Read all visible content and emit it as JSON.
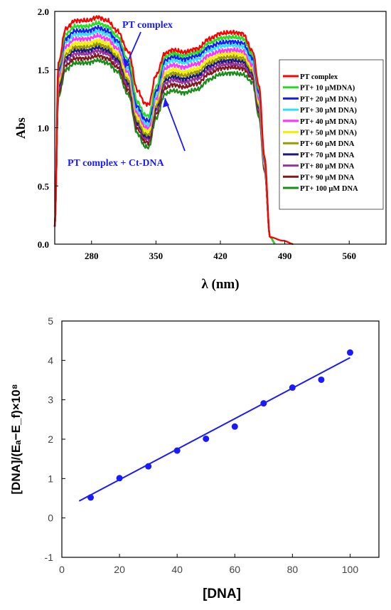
{
  "chart_data": [
    {
      "type": "line",
      "xlabel": "λ (nm)",
      "ylabel": "Abs",
      "xlim": [
        240,
        600
      ],
      "ylim": [
        0,
        2.0
      ],
      "xticks": [
        280,
        350,
        420,
        490,
        560
      ],
      "yticks": [
        0.0,
        0.5,
        1.0,
        1.5,
        2.0
      ],
      "ytick_labels": [
        "0.0",
        "0.5",
        "1.0",
        "1.5",
        "2.0"
      ],
      "annotations": [
        "PT complex",
        "PT complex + Ct-DNA"
      ],
      "legend_placement": "right",
      "series": [
        {
          "name": "PT complex",
          "color": "#ff0000",
          "peak1": 1.95,
          "valley": 1.2,
          "shoulder": 1.67,
          "peak2": 1.82,
          "tail": 1.66
        },
        {
          "name": "PT+ 10 μMDNA)",
          "color": "#22dd22",
          "peak1": 1.9,
          "valley": 1.1,
          "shoulder": 1.64,
          "peak2": 1.78,
          "tail": 1.63
        },
        {
          "name": "PT+ 20 μM DNA)",
          "color": "#1a1aff",
          "peak1": 1.86,
          "valley": 1.06,
          "shoulder": 1.61,
          "peak2": 1.74,
          "tail": 1.6
        },
        {
          "name": "PT+ 30 μM DNA)",
          "color": "#33ddff",
          "peak1": 1.83,
          "valley": 1.03,
          "shoulder": 1.58,
          "peak2": 1.71,
          "tail": 1.57
        },
        {
          "name": "PT+ 40 μM DNA)",
          "color": "#ff33ff",
          "peak1": 1.79,
          "valley": 1.0,
          "shoulder": 1.54,
          "peak2": 1.67,
          "tail": 1.54
        },
        {
          "name": "PT+ 50 μM DNA)",
          "color": "#f2f200",
          "peak1": 1.75,
          "valley": 0.97,
          "shoulder": 1.5,
          "peak2": 1.64,
          "tail": 1.51
        },
        {
          "name": "PT+ 60 μM DNA",
          "color": "#999900",
          "peak1": 1.72,
          "valley": 0.94,
          "shoulder": 1.47,
          "peak2": 1.61,
          "tail": 1.49
        },
        {
          "name": "PT+ 70 μM DNA",
          "color": "#1a1a80",
          "peak1": 1.69,
          "valley": 0.92,
          "shoulder": 1.44,
          "peak2": 1.58,
          "tail": 1.47
        },
        {
          "name": "PT+ 80 μM DNA",
          "color": "#993399",
          "peak1": 1.66,
          "valley": 0.9,
          "shoulder": 1.41,
          "peak2": 1.55,
          "tail": 1.45
        },
        {
          "name": "PT+ 90 μM DNA",
          "color": "#801a1a",
          "peak1": 1.62,
          "valley": 0.87,
          "shoulder": 1.37,
          "peak2": 1.52,
          "tail": 1.43
        },
        {
          "name": "PT+ 100 μM DNA",
          "color": "#1a8c1a",
          "peak1": 1.58,
          "valley": 0.83,
          "shoulder": 1.32,
          "peak2": 1.47,
          "tail": 1.39
        }
      ]
    },
    {
      "type": "scatter",
      "xlabel": "[DNA]",
      "ylabel": "[DNA]/(Eₐ−E_f)×10⁸",
      "xlim": [
        0,
        110
      ],
      "ylim": [
        -1,
        5
      ],
      "xticks": [
        0,
        20,
        40,
        60,
        80,
        100
      ],
      "yticks": [
        -1,
        0,
        1,
        2,
        3,
        4,
        5
      ],
      "points": [
        {
          "x": 10,
          "y": 0.52
        },
        {
          "x": 20,
          "y": 1.01
        },
        {
          "x": 30,
          "y": 1.31
        },
        {
          "x": 40,
          "y": 1.71
        },
        {
          "x": 50,
          "y": 2.01
        },
        {
          "x": 60,
          "y": 2.32
        },
        {
          "x": 70,
          "y": 2.91
        },
        {
          "x": 80,
          "y": 3.31
        },
        {
          "x": 90,
          "y": 3.51
        },
        {
          "x": 100,
          "y": 4.2
        }
      ],
      "fit_line": {
        "x": [
          6,
          100
        ],
        "y": [
          0.43,
          4.07
        ]
      },
      "color": "#1a1aff"
    }
  ]
}
